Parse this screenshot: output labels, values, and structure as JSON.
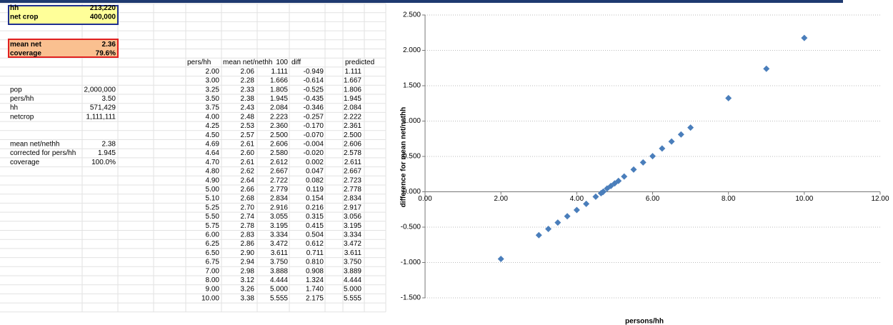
{
  "sheet": {
    "inputs": [
      {
        "label": "hh",
        "value": "213,220"
      },
      {
        "label": "net crop",
        "value": "400,000"
      }
    ],
    "outputs": [
      {
        "label": "mean net",
        "value": "2.36"
      },
      {
        "label": "coverage",
        "value": "79.6%"
      }
    ],
    "assumptions": [
      {
        "label": "pop",
        "value": "2,000,000"
      },
      {
        "label": "pers/hh",
        "value": "3.50"
      },
      {
        "label": "hh",
        "value": "571,429"
      },
      {
        "label": "netcrop",
        "value": "1,111,111"
      }
    ],
    "results": [
      {
        "label": "mean net/nethh",
        "value": "2.38"
      },
      {
        "label": "corrected for pers/hh",
        "value": "1.945"
      },
      {
        "label": "coverage",
        "value": "100.0%"
      }
    ],
    "table": {
      "header": [
        "pers/hh",
        "mean net/nethh",
        "100",
        "diff",
        "predicted"
      ],
      "rows": [
        [
          "2.00",
          "2.06",
          "1.111",
          "-0.949",
          "1.111"
        ],
        [
          "3.00",
          "2.28",
          "1.666",
          "-0.614",
          "1.667"
        ],
        [
          "3.25",
          "2.33",
          "1.805",
          "-0.525",
          "1.806"
        ],
        [
          "3.50",
          "2.38",
          "1.945",
          "-0.435",
          "1.945"
        ],
        [
          "3.75",
          "2.43",
          "2.084",
          "-0.346",
          "2.084"
        ],
        [
          "4.00",
          "2.48",
          "2.223",
          "-0.257",
          "2.222"
        ],
        [
          "4.25",
          "2.53",
          "2.360",
          "-0.170",
          "2.361"
        ],
        [
          "4.50",
          "2.57",
          "2.500",
          "-0.070",
          "2.500"
        ],
        [
          "4.69",
          "2.61",
          "2.606",
          "-0.004",
          "2.606"
        ],
        [
          "4.64",
          "2.60",
          "2.580",
          "-0.020",
          "2.578"
        ],
        [
          "4.70",
          "2.61",
          "2.612",
          "0.002",
          "2.611"
        ],
        [
          "4.80",
          "2.62",
          "2.667",
          "0.047",
          "2.667"
        ],
        [
          "4.90",
          "2.64",
          "2.722",
          "0.082",
          "2.723"
        ],
        [
          "5.00",
          "2.66",
          "2.779",
          "0.119",
          "2.778"
        ],
        [
          "5.10",
          "2.68",
          "2.834",
          "0.154",
          "2.834"
        ],
        [
          "5.25",
          "2.70",
          "2.916",
          "0.216",
          "2.917"
        ],
        [
          "5.50",
          "2.74",
          "3.055",
          "0.315",
          "3.056"
        ],
        [
          "5.75",
          "2.78",
          "3.195",
          "0.415",
          "3.195"
        ],
        [
          "6.00",
          "2.83",
          "3.334",
          "0.504",
          "3.334"
        ],
        [
          "6.25",
          "2.86",
          "3.472",
          "0.612",
          "3.472"
        ],
        [
          "6.50",
          "2.90",
          "3.611",
          "0.711",
          "3.611"
        ],
        [
          "6.75",
          "2.94",
          "3.750",
          "0.810",
          "3.750"
        ],
        [
          "7.00",
          "2.98",
          "3.888",
          "0.908",
          "3.889"
        ],
        [
          "8.00",
          "3.12",
          "4.444",
          "1.324",
          "4.444"
        ],
        [
          "9.00",
          "3.26",
          "5.000",
          "1.740",
          "5.000"
        ],
        [
          "10.00",
          "3.38",
          "5.555",
          "2.175",
          "5.555"
        ]
      ]
    }
  },
  "chart_data": {
    "type": "scatter",
    "x_label": "persons/hh",
    "y_label": "difference for mean net/nethh",
    "x": [
      2.0,
      3.0,
      3.25,
      3.5,
      3.75,
      4.0,
      4.25,
      4.5,
      4.69,
      4.64,
      4.7,
      4.8,
      4.9,
      5.0,
      5.1,
      5.25,
      5.5,
      5.75,
      6.0,
      6.25,
      6.5,
      6.75,
      7.0,
      8.0,
      9.0,
      10.0
    ],
    "values": [
      -0.949,
      -0.614,
      -0.525,
      -0.435,
      -0.346,
      -0.257,
      -0.17,
      -0.07,
      -0.004,
      -0.02,
      0.002,
      0.047,
      0.082,
      0.119,
      0.154,
      0.216,
      0.315,
      0.415,
      0.504,
      0.612,
      0.711,
      0.81,
      0.908,
      1.324,
      1.74,
      2.175
    ],
    "color": "#4a7ebb",
    "xlim": [
      0,
      12
    ],
    "xticks": [
      {
        "value": 0,
        "label": "0.00"
      },
      {
        "value": 2,
        "label": "2.00"
      },
      {
        "value": 4,
        "label": "4.00"
      },
      {
        "value": 6,
        "label": "6.00"
      },
      {
        "value": 8,
        "label": "8.00"
      },
      {
        "value": 10,
        "label": "10.00"
      },
      {
        "value": 12,
        "label": "12.00"
      }
    ],
    "ylim": [
      -1.5,
      2.5
    ],
    "yticks": [
      {
        "value": -1.5,
        "label": "-1.500"
      },
      {
        "value": -1,
        "label": "-1.000"
      },
      {
        "value": -0.5,
        "label": "-0.500"
      },
      {
        "value": 0,
        "label": "0.000"
      },
      {
        "value": 0.5,
        "label": "0.500"
      },
      {
        "value": 1,
        "label": "1.000"
      },
      {
        "value": 1.5,
        "label": "1.500"
      },
      {
        "value": 2,
        "label": "2.000"
      },
      {
        "value": 2.5,
        "label": "2.500"
      }
    ],
    "grid": true
  }
}
